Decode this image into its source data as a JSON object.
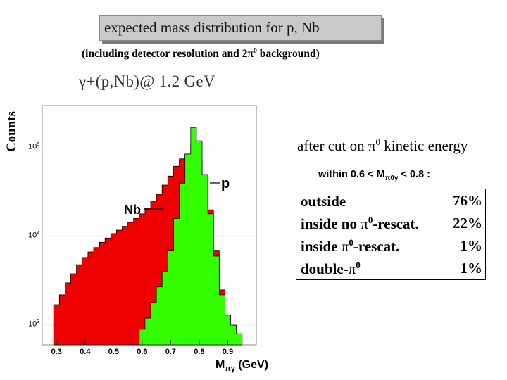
{
  "header": {
    "title": "expected mass distribution for p, Nb",
    "subtitle_pre": "(including detector resolution and 2π",
    "subtitle_sup": "0",
    "subtitle_post": " background)"
  },
  "reaction": "γ+(p,Nb)@ 1.2 GeV",
  "colors": {
    "nb_fill": "#ee0000",
    "p_fill": "#33ff00",
    "outline": "#000000",
    "frame": "#888888"
  },
  "chart_data": {
    "type": "area",
    "title": "γ+(p,Nb)@ 1.2 GeV",
    "xlabel_main": "M",
    "xlabel_sub": "πγ",
    "xlabel_unit": " (GeV)",
    "ylabel": "Counts",
    "yscale": "log",
    "xlim": [
      0.25,
      1.0
    ],
    "ylim": [
      600,
      300000
    ],
    "x_ticks": [
      "0.3",
      "0.4",
      "0.5",
      "0.6",
      "0.7",
      "0.8",
      "0.9"
    ],
    "y_ticks": [
      {
        "base": "10",
        "exp": "5",
        "value": 100000
      },
      {
        "base": "10",
        "exp": "4",
        "value": 10000
      },
      {
        "base": "10",
        "exp": "3",
        "value": 1000
      }
    ],
    "series": [
      {
        "name": "Nb",
        "x": [
          0.3,
          0.32,
          0.34,
          0.36,
          0.38,
          0.4,
          0.42,
          0.44,
          0.46,
          0.48,
          0.5,
          0.52,
          0.54,
          0.56,
          0.58,
          0.6,
          0.62,
          0.64,
          0.66,
          0.68,
          0.7,
          0.72,
          0.74,
          0.76,
          0.78,
          0.8,
          0.82,
          0.84,
          0.86,
          0.88,
          0.9,
          0.92,
          0.94
        ],
        "values": [
          1700,
          2200,
          3000,
          3800,
          4800,
          5800,
          6700,
          7500,
          8600,
          9600,
          10800,
          11800,
          13000,
          14500,
          16000,
          18000,
          21000,
          25000,
          30000,
          38000,
          48000,
          62000,
          75000,
          85000,
          110000,
          70000,
          40000,
          20000,
          7000,
          2500,
          1300,
          1000,
          800
        ]
      },
      {
        "name": "p",
        "x": [
          0.6,
          0.62,
          0.64,
          0.66,
          0.68,
          0.7,
          0.72,
          0.74,
          0.76,
          0.78,
          0.8,
          0.82,
          0.84,
          0.86,
          0.88,
          0.9,
          0.92,
          0.94
        ],
        "values": [
          900,
          1200,
          1800,
          2700,
          4000,
          7000,
          16000,
          40000,
          85000,
          170000,
          120000,
          50000,
          18000,
          6000,
          2200,
          1300,
          1000,
          800
        ]
      }
    ],
    "annotations": [
      {
        "text": "p",
        "target": "p"
      },
      {
        "text": "Nb",
        "target": "Nb"
      }
    ]
  },
  "cut_box": {
    "line_pre": "after cut on π",
    "line_sup": "0",
    "line_post": " kinetic energy",
    "within_pre": "within 0.6 < M",
    "within_sub": "π0γ",
    "within_post": " < 0.8 :"
  },
  "results": [
    {
      "pre": "outside",
      "pi": "",
      "sup": "",
      "post": "",
      "value": "76%"
    },
    {
      "pre": "inside no ",
      "pi": "π",
      "sup": "0",
      "post": "-rescat.",
      "value": "22%"
    },
    {
      "pre": "inside ",
      "pi": "π",
      "sup": "0",
      "post": "-rescat.",
      "value": "1%"
    },
    {
      "pre": "double-",
      "pi": "π",
      "sup": "0",
      "post": "",
      "value": "1%"
    }
  ]
}
